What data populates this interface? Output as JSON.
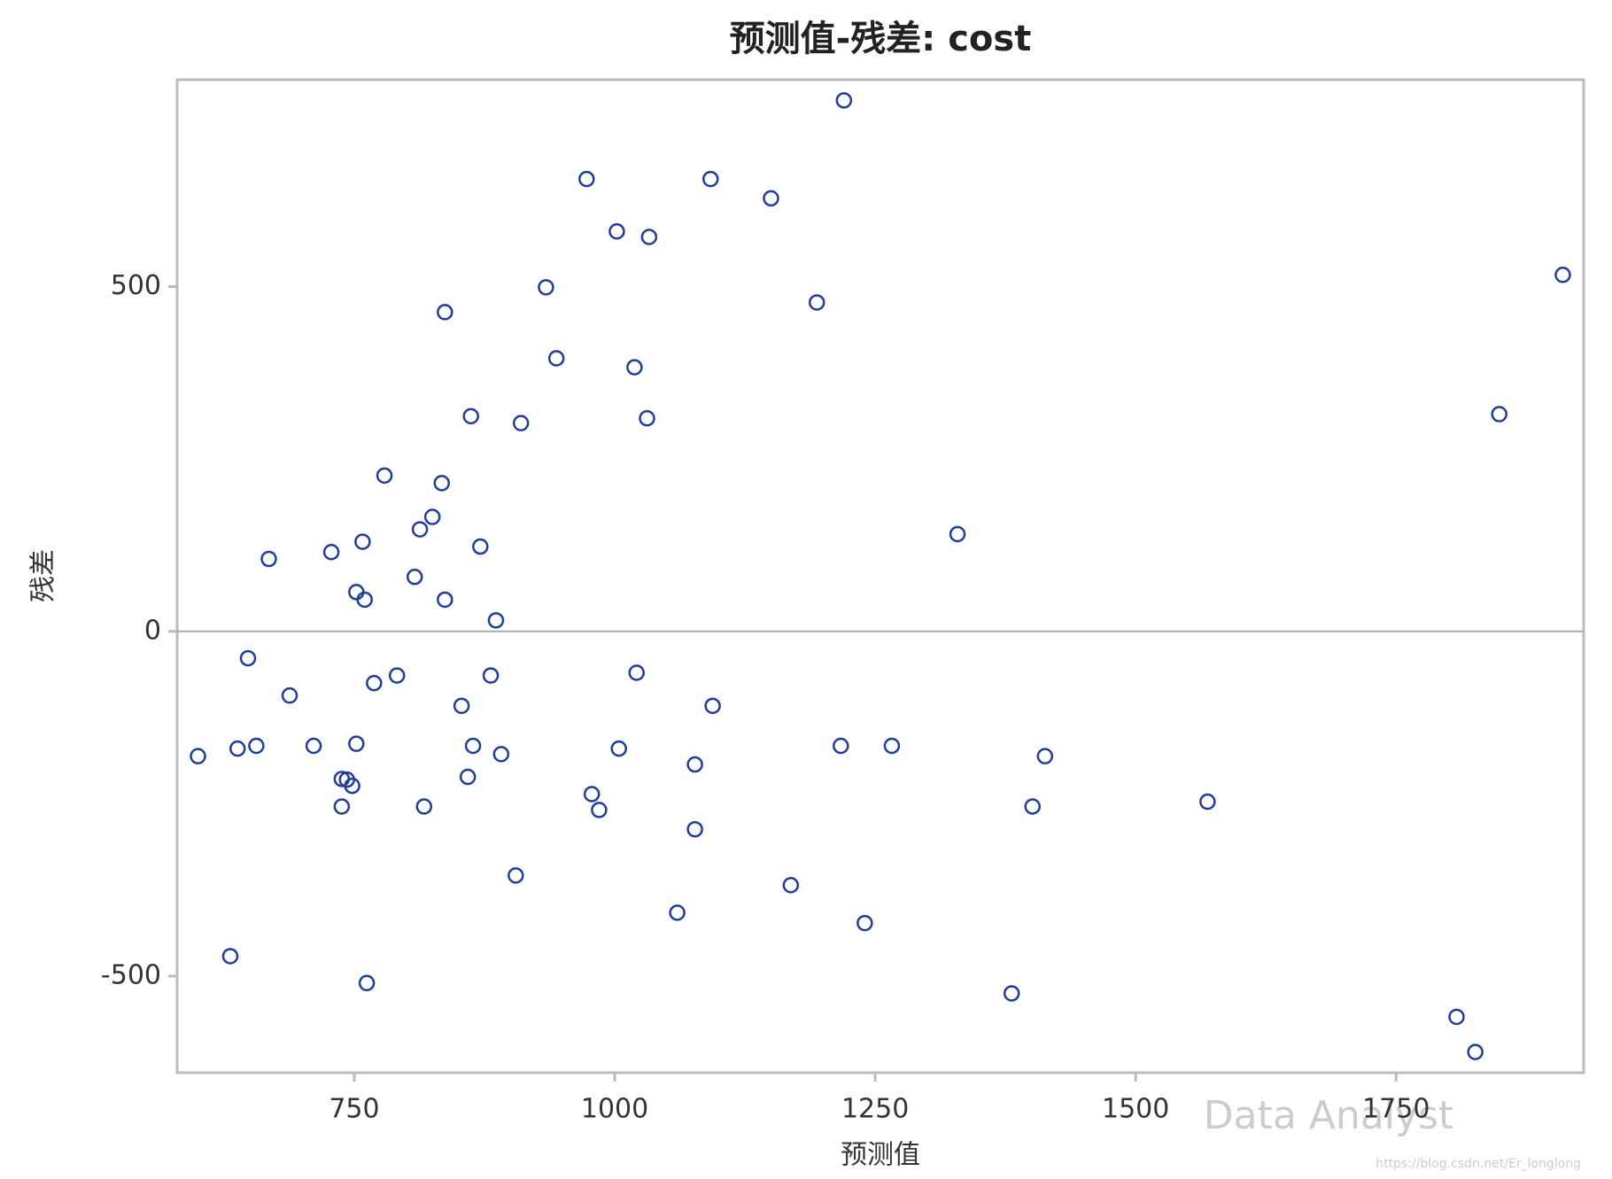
{
  "chart_data": {
    "type": "scatter",
    "title": "预测值-残差: cost",
    "xlabel": "预测值",
    "ylabel": "残差",
    "xlim": [
      580,
      1930
    ],
    "ylim": [
      -640,
      800
    ],
    "xticks": [
      750,
      1000,
      1250,
      1500,
      1750
    ],
    "yticks": [
      -500,
      0,
      500
    ],
    "reference_line": 0,
    "grid": false,
    "color": "#1f3d99",
    "x": [
      1220,
      973,
      1092,
      1150,
      1002,
      1033,
      934,
      1194,
      837,
      944,
      1019,
      862,
      910,
      1031,
      1910,
      1849,
      779,
      834,
      825,
      813,
      1329,
      758,
      728,
      871,
      668,
      808,
      752,
      760,
      837,
      886,
      648,
      688,
      769,
      791,
      881,
      1021,
      853,
      1094,
      600,
      638,
      656,
      711,
      752,
      864,
      891,
      1004,
      1217,
      1266,
      1413,
      1077,
      738,
      743,
      748,
      859,
      978,
      985,
      738,
      817,
      1401,
      1569,
      1077,
      905,
      1169,
      1060,
      1240,
      631,
      762,
      1381,
      1808,
      1826
    ],
    "y": [
      770,
      656,
      656,
      628,
      580,
      572,
      499,
      477,
      463,
      396,
      383,
      312,
      302,
      309,
      517,
      315,
      226,
      215,
      166,
      148,
      141,
      130,
      115,
      123,
      105,
      79,
      57,
      46,
      46,
      16,
      -39,
      -93,
      -75,
      -64,
      -64,
      -60,
      -108,
      -108,
      -181,
      -170,
      -166,
      -166,
      -163,
      -166,
      -178,
      -170,
      -166,
      -166,
      -181,
      -193,
      -214,
      -215,
      -224,
      -211,
      -236,
      -259,
      -254,
      -254,
      -254,
      -247,
      -287,
      -354,
      -368,
      -408,
      -423,
      -471,
      -510,
      -525,
      -559,
      -610
    ],
    "watermark": "Data Analyst",
    "source": "https://blog.csdn.net/Er_longlong"
  }
}
